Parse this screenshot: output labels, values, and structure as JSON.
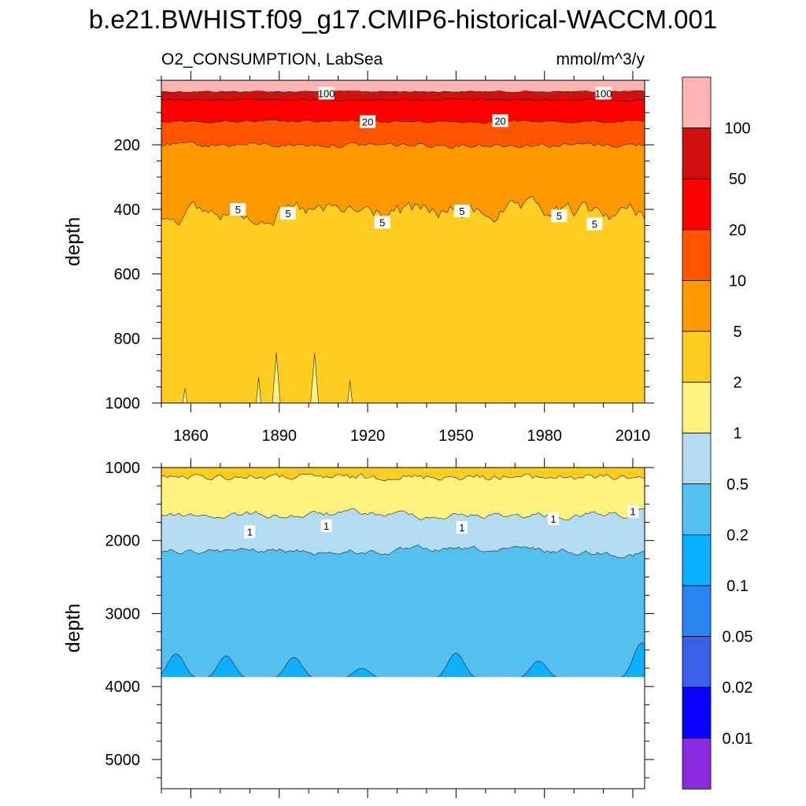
{
  "chart_data": {
    "type": "heatmap",
    "title": "b.e21.BWHIST.f09_g17.CMIP6-historical-WACCM.001",
    "left_label": "O2_CONSUMPTION, LabSea",
    "right_label": "mmol/m^3/y",
    "time_range": [
      1850,
      2014
    ],
    "x_ticks": [
      1860,
      1890,
      1920,
      1950,
      1980,
      2010
    ],
    "colorbar": {
      "labels": [
        "100",
        "50",
        "20",
        "10",
        "5",
        "2",
        "1",
        "0.5",
        "0.2",
        "0.1",
        "0.05",
        "0.02",
        "0.01"
      ],
      "colors": [
        "#ffb3b3",
        "#d11010",
        "#ff0000",
        "#ff5500",
        "#ff9900",
        "#ffcc22",
        "#fff380",
        "#b3dcf3",
        "#55c0f0",
        "#0cb0ff",
        "#2a85f0",
        "#3a5fe8",
        "#0a00ff",
        "#8a2be2"
      ]
    },
    "panels": [
      {
        "name": "upper",
        "ylabel": "depth",
        "ylim": [
          1000,
          0
        ],
        "y_ticks": [
          200,
          400,
          600,
          800,
          1000
        ],
        "contour_labels": [
          "100",
          "100",
          "20",
          "20",
          "5",
          "5",
          "5",
          "5",
          "5",
          "5"
        ],
        "levels": [
          {
            "value_band": ">100",
            "color": "#ffb3b3",
            "lower_depth": 0,
            "upper_depth": 0
          },
          {
            "value_band": "50-100",
            "color": "#d11010",
            "mean_depth": 35
          },
          {
            "value_band": "20-50",
            "color": "#ff0000",
            "mean_depth": 60
          },
          {
            "value_band": "10-20",
            "color": "#ff5500",
            "mean_depth": 128
          },
          {
            "value_band": "5-10",
            "color": "#ff9900",
            "mean_depth": 200
          },
          {
            "value_band": "2-5",
            "color": "#ffcc22",
            "mean_depth": 410
          },
          {
            "value_band": "1-2",
            "color": "#fff380",
            "mean_depth": 1000
          }
        ]
      },
      {
        "name": "lower",
        "ylabel": "depth",
        "ylim": [
          5400,
          1000
        ],
        "y_ticks": [
          1000,
          2000,
          3000,
          4000,
          5000
        ],
        "contour_labels": [
          "1",
          "1",
          "1",
          "1",
          "1"
        ],
        "bottom_depth": 3870,
        "levels": [
          {
            "value_band": "2-5",
            "color": "#ffcc22",
            "mean_depth": 1000
          },
          {
            "value_band": "1-2",
            "color": "#fff380",
            "mean_depth": 1130
          },
          {
            "value_band": "0.5-1",
            "color": "#b3dcf3",
            "mean_depth": 1650
          },
          {
            "value_band": "0.2-0.5",
            "color": "#55c0f0",
            "mean_depth": 2150
          },
          {
            "value_band": "0.1-0.2",
            "color": "#0cb0ff",
            "mean_depth": 3800
          }
        ]
      }
    ]
  }
}
